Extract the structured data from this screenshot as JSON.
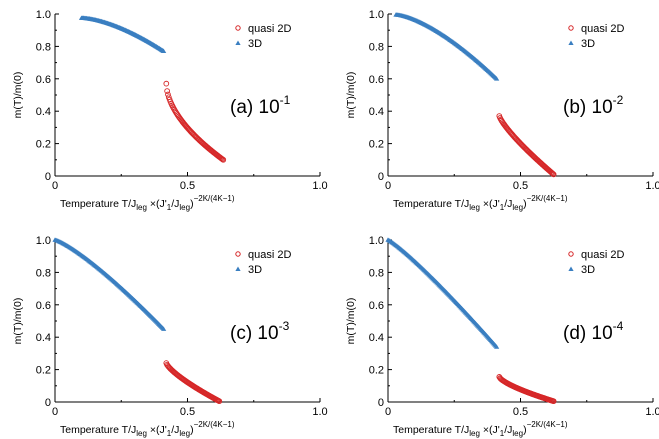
{
  "colors": {
    "quasi2d": "#d62728",
    "threeD": "#3a7fc1"
  },
  "chart_data": [
    {
      "type": "scatter",
      "panel_label": "(a) 10",
      "panel_exp": "-1",
      "xlabel": {
        "main": "Temperature T/J",
        "sub1": "leg",
        "mid": " ×(J'",
        "sub2": "1",
        "mid2": "/J",
        "sub3": "leg",
        "end": ")",
        "sup": "−2K/(4K−1)"
      },
      "ylabel": "m(T)/m(0)",
      "xlim": [
        0,
        1.0
      ],
      "ylim": [
        0,
        1.0
      ],
      "xticks": [
        "0",
        "0.5",
        "1.0"
      ],
      "yticks": [
        "0",
        "0.2",
        "0.4",
        "0.6",
        "0.8",
        "1.0"
      ],
      "legend": [
        "quasi 2D",
        "3D"
      ],
      "series": [
        {
          "name": "quasi 2D",
          "x_range": [
            0.42,
            0.635
          ],
          "y_range": [
            0.57,
            0.1
          ],
          "exponent": 0.55
        },
        {
          "name": "3D",
          "x_range": [
            0.1,
            0.41
          ],
          "y_range": [
            0.975,
            0.77
          ],
          "exponent": 1.6
        }
      ]
    },
    {
      "type": "scatter",
      "panel_label": "(b) 10",
      "panel_exp": "-2",
      "xlabel": {
        "main": "Temperature T/J",
        "sub1": "leg",
        "mid": " ×(J'",
        "sub2": "1",
        "mid2": "/J",
        "sub3": "leg",
        "end": ")",
        "sup": "−2K/(4K−1)"
      },
      "ylabel": "m(T)/m(0)",
      "xlim": [
        0,
        1.0
      ],
      "ylim": [
        0,
        1.0
      ],
      "xticks": [
        "0",
        "0.5",
        "1.0"
      ],
      "yticks": [
        "0",
        "0.2",
        "0.4",
        "0.6",
        "0.8",
        "1.0"
      ],
      "legend": [
        "quasi 2D",
        "3D"
      ],
      "series": [
        {
          "name": "quasi 2D",
          "x_range": [
            0.42,
            0.625
          ],
          "y_range": [
            0.37,
            0.01
          ],
          "exponent": 0.8
        },
        {
          "name": "3D",
          "x_range": [
            0.03,
            0.41
          ],
          "y_range": [
            0.995,
            0.6
          ],
          "exponent": 1.5
        }
      ]
    },
    {
      "type": "scatter",
      "panel_label": "(c) 10",
      "panel_exp": "-3",
      "xlabel": {
        "main": "Temperature T/J",
        "sub1": "leg",
        "mid": " ×(J'",
        "sub2": "1",
        "mid2": "/J",
        "sub3": "leg",
        "end": ")",
        "sup": "−2K/(4K−1)"
      },
      "ylabel": "m(T)/m(0)",
      "xlim": [
        0,
        1.0
      ],
      "ylim": [
        0,
        1.0
      ],
      "xticks": [
        "0",
        "0.5",
        "1.0"
      ],
      "yticks": [
        "0",
        "0.2",
        "0.4",
        "0.6",
        "0.8",
        "1.0"
      ],
      "legend": [
        "quasi 2D",
        "3D"
      ],
      "series": [
        {
          "name": "quasi 2D",
          "x_range": [
            0.42,
            0.62
          ],
          "y_range": [
            0.24,
            0.005
          ],
          "exponent": 0.75
        },
        {
          "name": "3D",
          "x_range": [
            0.0,
            0.41
          ],
          "y_range": [
            1.0,
            0.45
          ],
          "exponent": 1.25
        }
      ]
    },
    {
      "type": "scatter",
      "panel_label": "(d) 10",
      "panel_exp": "-4",
      "xlabel": {
        "main": "Temperature T/J",
        "sub1": "leg",
        "mid": " ×(J'",
        "sub2": "1",
        "mid2": "/J",
        "sub3": "leg",
        "end": ")",
        "sup": "−2K/(4K−1)"
      },
      "ylabel": "m(T)/m(0)",
      "xlim": [
        0,
        1.0
      ],
      "ylim": [
        0,
        1.0
      ],
      "xticks": [
        "0",
        "0.5",
        "1.0"
      ],
      "yticks": [
        "0",
        "0.2",
        "0.4",
        "0.6",
        "0.8",
        "1.0"
      ],
      "legend": [
        "quasi 2D",
        "3D"
      ],
      "series": [
        {
          "name": "quasi 2D",
          "x_range": [
            0.42,
            0.625
          ],
          "y_range": [
            0.155,
            0.005
          ],
          "exponent": 0.7
        },
        {
          "name": "3D",
          "x_range": [
            0.0,
            0.41
          ],
          "y_range": [
            1.0,
            0.34
          ],
          "exponent": 1.15
        }
      ]
    }
  ]
}
